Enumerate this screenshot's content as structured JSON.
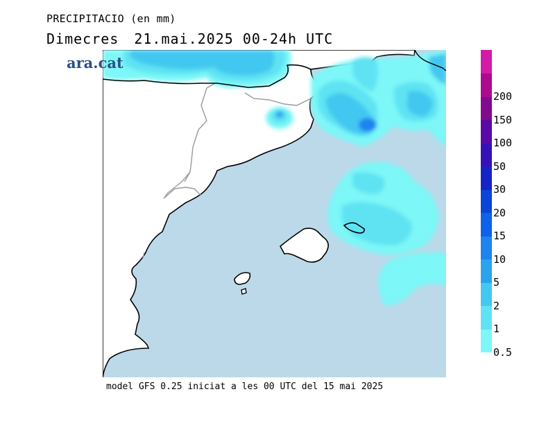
{
  "header": {
    "title": "PRECIPITACIO (en mm)",
    "day": "Dimecres",
    "period": "21.mai.2025 00-24h UTC"
  },
  "brand": "ara.cat",
  "footer": "model GFS 0.25 iniciat a les 00 UTC del 15 mai 2025",
  "legend": {
    "bands": [
      {
        "label": "0.5",
        "color": "#7df7f7"
      },
      {
        "label": "1",
        "color": "#5fe3f3"
      },
      {
        "label": "2",
        "color": "#43c8f0"
      },
      {
        "label": "5",
        "color": "#2aa3ee"
      },
      {
        "label": "10",
        "color": "#1b84ee"
      },
      {
        "label": "15",
        "color": "#0d62ea"
      },
      {
        "label": "20",
        "color": "#0a45d8"
      },
      {
        "label": "30",
        "color": "#1624c6"
      },
      {
        "label": "50",
        "color": "#3511b8"
      },
      {
        "label": "100",
        "color": "#5a0aa6"
      },
      {
        "label": "150",
        "color": "#820a8f"
      },
      {
        "label": "200",
        "color": "#ad0b8f"
      },
      {
        "label": "",
        "color": "#d41aa9"
      }
    ]
  },
  "colors": {
    "sea": "#bcd9ea",
    "land": "#ffffff",
    "coast": "#000000",
    "border": "#999999"
  }
}
